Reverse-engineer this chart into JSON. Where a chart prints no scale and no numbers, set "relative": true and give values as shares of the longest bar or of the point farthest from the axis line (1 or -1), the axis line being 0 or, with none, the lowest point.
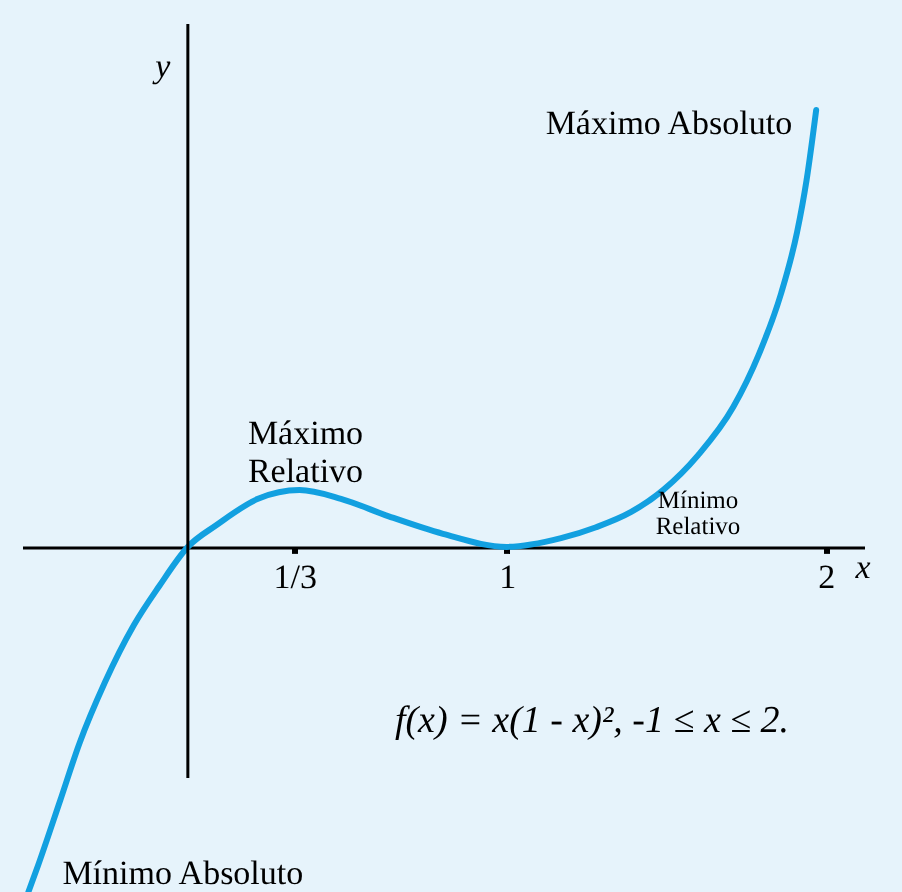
{
  "chart_data": {
    "type": "line",
    "relative": true,
    "xlabel": "x",
    "ylabel": "y",
    "x": [
      -0.5,
      -0.47,
      -0.4,
      -0.34,
      -0.26,
      -0.17,
      -0.09,
      0,
      0.09,
      0.22,
      0.35,
      0.48,
      0.63,
      0.8,
      1.0,
      1.17,
      1.28,
      1.39,
      1.49,
      1.6,
      1.71,
      1.79,
      1.86,
      1.91,
      1.94,
      1.97
    ],
    "series": [
      {
        "color": "#12a0e0",
        "values": [
          -0.79,
          -0.73,
          -0.58,
          -0.45,
          -0.31,
          -0.18,
          -0.09,
          0,
          0.05,
          0.11,
          0.13,
          0.11,
          0.07,
          0.03,
          0,
          0.02,
          0.045,
          0.08,
          0.13,
          0.21,
          0.32,
          0.44,
          0.58,
          0.72,
          0.84,
          1.0
        ]
      }
    ],
    "xlim": [
      -0.52,
      2.12
    ],
    "xticks": [
      {
        "value": 0.3333,
        "label": "1/3"
      },
      1,
      2
    ],
    "annotations": [
      {
        "text": "Máximo Absoluto",
        "x": 1.97,
        "y": 1.0
      },
      {
        "text": "Máximo\nRelativo",
        "x": 0.35,
        "y": 0.13
      },
      "Mínimo\nRelativo",
      {
        "text": "Mínimo Absoluto",
        "x": -0.5,
        "y": -0.79
      },
      "f(x) = x(1 - x)², -1 ≤ x ≤ 2."
    ]
  }
}
